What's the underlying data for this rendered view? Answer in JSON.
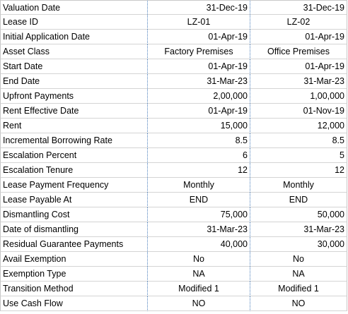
{
  "rows": [
    {
      "label": "Valuation Date",
      "v1": "31-Dec-19",
      "v2": "31-Dec-19",
      "align": "right"
    },
    {
      "label": "Lease ID",
      "v1": "LZ-01",
      "v2": "LZ-02",
      "align": "center"
    },
    {
      "label": "Initial Application Date",
      "v1": "01-Apr-19",
      "v2": "01-Apr-19",
      "align": "right"
    },
    {
      "label": "Asset Class",
      "v1": "Factory Premises",
      "v2": "Office Premises",
      "align": "center"
    },
    {
      "label": "Start Date",
      "v1": "01-Apr-19",
      "v2": "01-Apr-19",
      "align": "right"
    },
    {
      "label": "End Date",
      "v1": "31-Mar-23",
      "v2": "31-Mar-23",
      "align": "right"
    },
    {
      "label": "Upfront Payments",
      "v1": "2,00,000",
      "v2": "1,00,000",
      "align": "right"
    },
    {
      "label": "Rent Effective Date",
      "v1": "01-Apr-19",
      "v2": "01-Nov-19",
      "align": "right"
    },
    {
      "label": "Rent",
      "v1": "15,000",
      "v2": "12,000",
      "align": "right"
    },
    {
      "label": "Incremental Borrowing Rate",
      "v1": "8.5",
      "v2": "8.5",
      "align": "right"
    },
    {
      "label": "Escalation Percent",
      "v1": "6",
      "v2": "5",
      "align": "right"
    },
    {
      "label": "Escalation Tenure",
      "v1": "12",
      "v2": "12",
      "align": "right"
    },
    {
      "label": "Lease Payment Frequency",
      "v1": "Monthly",
      "v2": "Monthly",
      "align": "center"
    },
    {
      "label": "Lease Payable At",
      "v1": "END",
      "v2": "END",
      "align": "center"
    },
    {
      "label": "Dismantling Cost",
      "v1": "75,000",
      "v2": "50,000",
      "align": "right"
    },
    {
      "label": "Date of dismantling",
      "v1": "31-Mar-23",
      "v2": "31-Mar-23",
      "align": "right"
    },
    {
      "label": "Residual Guarantee Payments",
      "v1": "40,000",
      "v2": "30,000",
      "align": "right"
    },
    {
      "label": "Avail Exemption",
      "v1": "No",
      "v2": "No",
      "align": "center"
    },
    {
      "label": "Exemption Type",
      "v1": "NA",
      "v2": "NA",
      "align": "center"
    },
    {
      "label": "Transition Method",
      "v1": "Modified 1",
      "v2": "Modified 1",
      "align": "center"
    },
    {
      "label": "Use Cash Flow",
      "v1": "NO",
      "v2": "NO",
      "align": "center"
    }
  ]
}
